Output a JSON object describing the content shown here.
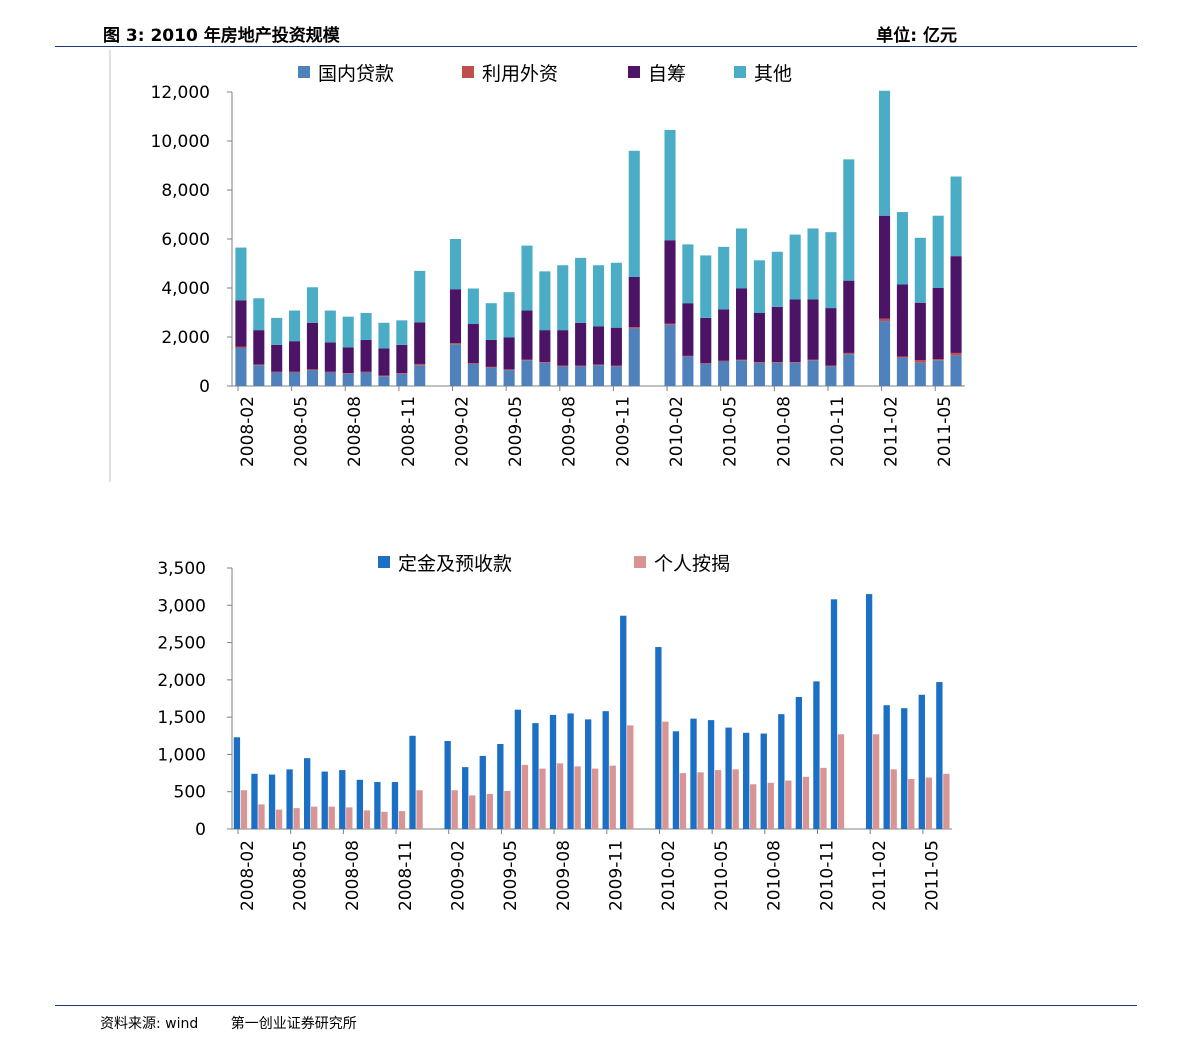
{
  "header": {
    "title": "图 3:  2010 年房地产投资规模",
    "unit": "单位:  亿元"
  },
  "footer": {
    "source": "资料来源:  wind",
    "institute": "第一创业证券研究所"
  },
  "chart_data": [
    {
      "type": "bar",
      "stacked": true,
      "categories": [
        "2008-02",
        "2008-03",
        "2008-04",
        "2008-05",
        "2008-06",
        "2008-07",
        "2008-08",
        "2008-09",
        "2008-10",
        "2008-11",
        "2008-12",
        "2009-01",
        "2009-02",
        "2009-03",
        "2009-04",
        "2009-05",
        "2009-06",
        "2009-07",
        "2009-08",
        "2009-09",
        "2009-10",
        "2009-11",
        "2009-12",
        "2010-01",
        "2010-02",
        "2010-03",
        "2010-04",
        "2010-05",
        "2010-06",
        "2010-07",
        "2010-08",
        "2010-09",
        "2010-10",
        "2010-11",
        "2010-12",
        "2011-01",
        "2011-02",
        "2011-03",
        "2011-04",
        "2011-05",
        "2011-06"
      ],
      "tick_labels": [
        "2008-02",
        "2008-05",
        "2008-08",
        "2008-11",
        "2009-02",
        "2009-05",
        "2009-08",
        "2009-11",
        "2010-02",
        "2010-05",
        "2010-08",
        "2010-11",
        "2011-02",
        "2011-05"
      ],
      "series": [
        {
          "name": "国内贷款",
          "color": "#4f81bd",
          "values": [
            1550,
            850,
            550,
            550,
            650,
            550,
            500,
            550,
            400,
            500,
            850,
            null,
            1700,
            900,
            750,
            650,
            1050,
            950,
            800,
            800,
            850,
            800,
            2350,
            null,
            2500,
            1200,
            900,
            1000,
            1050,
            950,
            950,
            950,
            1050,
            800,
            1300,
            null,
            2650,
            1150,
            950,
            1050,
            1250
          ]
        },
        {
          "name": "利用外资",
          "color": "#c0504d",
          "values": [
            50,
            30,
            30,
            30,
            30,
            30,
            30,
            30,
            30,
            30,
            50,
            null,
            50,
            30,
            30,
            30,
            30,
            30,
            30,
            30,
            30,
            30,
            50,
            null,
            50,
            30,
            30,
            30,
            30,
            30,
            30,
            30,
            30,
            30,
            50,
            null,
            100,
            50,
            100,
            50,
            100
          ]
        },
        {
          "name": "自筹",
          "color": "#4b1466",
          "values": [
            1900,
            1400,
            1100,
            1250,
            1900,
            1200,
            1050,
            1300,
            1100,
            1150,
            1700,
            null,
            2200,
            1600,
            1100,
            1300,
            2000,
            1300,
            1450,
            1750,
            1550,
            1550,
            2050,
            null,
            3400,
            2150,
            1850,
            2100,
            2900,
            2000,
            2250,
            2550,
            2450,
            2350,
            2950,
            null,
            4200,
            2950,
            2350,
            2900,
            3950
          ]
        },
        {
          "name": "其他",
          "color": "#4bacc6",
          "values": [
            2150,
            1300,
            1100,
            1250,
            1450,
            1300,
            1250,
            1100,
            1050,
            1000,
            2100,
            null,
            2050,
            1450,
            1500,
            1850,
            2650,
            2400,
            2650,
            2650,
            2500,
            2650,
            5150,
            null,
            4500,
            2400,
            2550,
            2550,
            2450,
            2150,
            2250,
            2650,
            2900,
            3100,
            4950,
            null,
            5100,
            2950,
            2650,
            2950,
            3250
          ]
        }
      ],
      "ylim": [
        0,
        12000
      ],
      "yticks": [
        "0",
        "2,000",
        "4,000",
        "6,000",
        "8,000",
        "10,000",
        "12,000"
      ],
      "legend": "top"
    },
    {
      "type": "bar",
      "categories": [
        "2008-02",
        "2008-03",
        "2008-04",
        "2008-05",
        "2008-06",
        "2008-07",
        "2008-08",
        "2008-09",
        "2008-10",
        "2008-11",
        "2008-12",
        "2009-01",
        "2009-02",
        "2009-03",
        "2009-04",
        "2009-05",
        "2009-06",
        "2009-07",
        "2009-08",
        "2009-09",
        "2009-10",
        "2009-11",
        "2009-12",
        "2010-01",
        "2010-02",
        "2010-03",
        "2010-04",
        "2010-05",
        "2010-06",
        "2010-07",
        "2010-08",
        "2010-09",
        "2010-10",
        "2010-11",
        "2010-12",
        "2011-01",
        "2011-02",
        "2011-03",
        "2011-04",
        "2011-05",
        "2011-06"
      ],
      "tick_labels": [
        "2008-02",
        "2008-05",
        "2008-08",
        "2008-11",
        "2009-02",
        "2009-05",
        "2009-08",
        "2009-11",
        "2010-02",
        "2010-05",
        "2010-08",
        "2010-11",
        "2011-02",
        "2011-05"
      ],
      "series": [
        {
          "name": "定金及预收款",
          "color": "#1b6fc4",
          "values": [
            1230,
            740,
            730,
            800,
            950,
            770,
            790,
            660,
            630,
            630,
            1250,
            null,
            1180,
            830,
            980,
            1140,
            1600,
            1420,
            1530,
            1550,
            1470,
            1580,
            2860,
            null,
            2440,
            1310,
            1480,
            1460,
            1360,
            1290,
            1280,
            1540,
            1770,
            1980,
            3080,
            null,
            3150,
            1660,
            1620,
            1800,
            1970
          ]
        },
        {
          "name": "个人按揭",
          "color": "#d99594",
          "values": [
            520,
            330,
            260,
            280,
            300,
            300,
            290,
            250,
            230,
            240,
            520,
            null,
            520,
            450,
            470,
            510,
            860,
            810,
            880,
            840,
            810,
            850,
            1390,
            null,
            1440,
            750,
            760,
            790,
            800,
            600,
            620,
            650,
            700,
            820,
            1270,
            null,
            1270,
            800,
            670,
            690,
            740
          ]
        }
      ],
      "ylim": [
        0,
        3500
      ],
      "yticks": [
        "0",
        "500",
        "1,000",
        "1,500",
        "2,000",
        "2,500",
        "3,000",
        "3,500"
      ],
      "legend": "top"
    }
  ]
}
